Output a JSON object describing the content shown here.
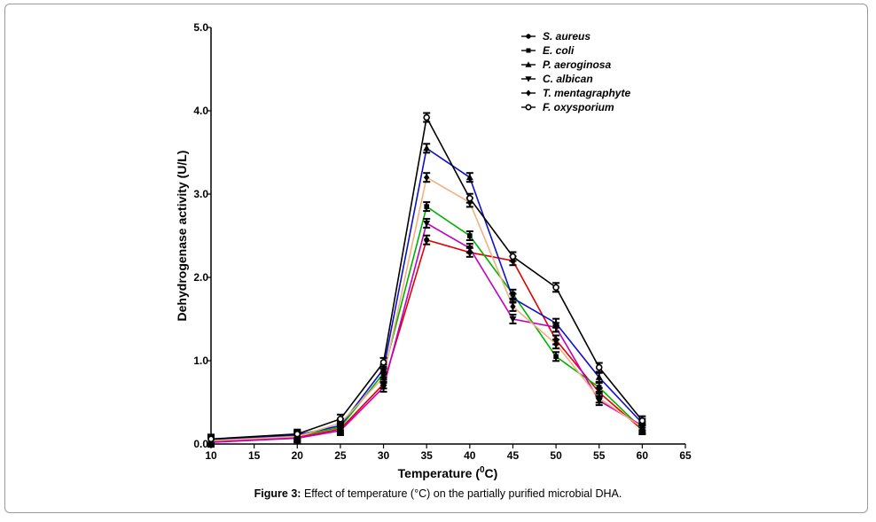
{
  "caption": {
    "label": "Figure 3:",
    "text": " Effect of temperature (°C) on the partially purified microbial DHA."
  },
  "chart_data": {
    "type": "line",
    "title": "",
    "xlabel": "Temperature (",
    "xlabel_sup": "0",
    "xlabel_end": "C)",
    "ylabel": "Dehydrogenase activity (U/L)",
    "xlim": [
      10,
      65
    ],
    "ylim": [
      0,
      5
    ],
    "x_ticks": [
      "10",
      "15",
      "20",
      "25",
      "30",
      "35",
      "40",
      "45",
      "50",
      "55",
      "60",
      "65"
    ],
    "y_ticks": [
      "0.0",
      "1.0",
      "2.0",
      "3.0",
      "4.0",
      "5.0"
    ],
    "x": [
      10,
      20,
      25,
      30,
      35,
      40,
      45,
      50,
      55,
      60
    ],
    "legend_position": "top-right",
    "series": [
      {
        "name": "S. aureus",
        "color": "#e00000",
        "marker": "circle-filled",
        "values": [
          0.03,
          0.08,
          0.18,
          0.72,
          2.45,
          2.3,
          2.2,
          1.25,
          0.62,
          0.17
        ]
      },
      {
        "name": "E. coli",
        "color": "#00b000",
        "marker": "square",
        "values": [
          0.04,
          0.1,
          0.2,
          0.85,
          2.85,
          2.5,
          1.8,
          1.05,
          0.68,
          0.18
        ]
      },
      {
        "name": "P. aeroginosa",
        "color": "#1010c8",
        "marker": "triangle-up",
        "values": [
          0.05,
          0.11,
          0.22,
          0.9,
          3.55,
          3.2,
          1.75,
          1.45,
          0.8,
          0.25
        ]
      },
      {
        "name": "C. albican",
        "color": "#c000c0",
        "marker": "triangle-down",
        "values": [
          0.02,
          0.07,
          0.16,
          0.68,
          2.65,
          2.35,
          1.5,
          1.4,
          0.52,
          0.22
        ]
      },
      {
        "name": "T. mentagraphyte",
        "color": "#f0b080",
        "marker": "diamond",
        "values": [
          0.04,
          0.09,
          0.25,
          0.8,
          3.2,
          2.9,
          1.65,
          1.2,
          0.55,
          0.2
        ]
      },
      {
        "name": "F. oxysporium",
        "color": "#000000",
        "marker": "circle-open",
        "values": [
          0.06,
          0.12,
          0.3,
          0.98,
          3.92,
          2.95,
          2.25,
          1.88,
          0.92,
          0.28
        ]
      }
    ]
  }
}
